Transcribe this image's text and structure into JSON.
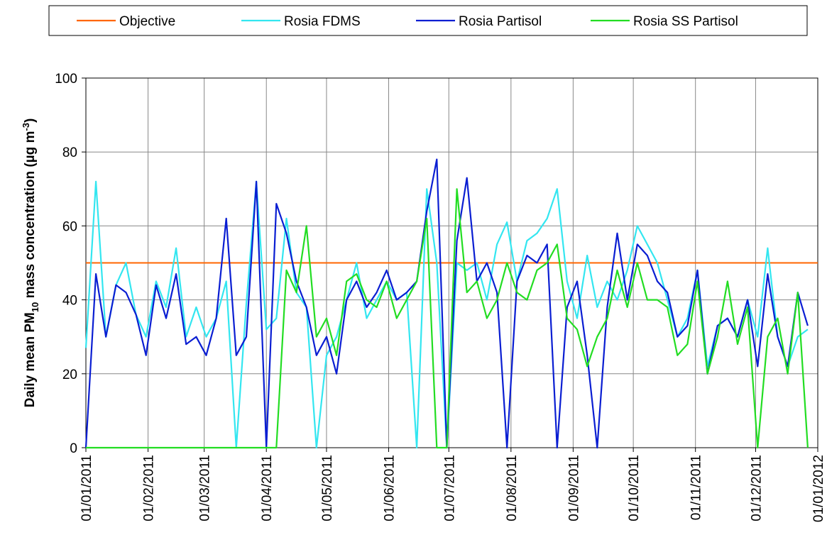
{
  "chart_data": {
    "type": "line",
    "y_label": [
      "Daily mean PM",
      "10",
      " mass concentration (µg m",
      "-3",
      ")"
    ],
    "x": [
      "01/01/2011",
      "06/01/2011",
      "11/01/2011",
      "16/01/2011",
      "21/01/2011",
      "26/01/2011",
      "31/01/2011",
      "05/02/2011",
      "10/02/2011",
      "15/02/2011",
      "20/02/2011",
      "25/02/2011",
      "02/03/2011",
      "07/03/2011",
      "12/03/2011",
      "17/03/2011",
      "22/03/2011",
      "27/03/2011",
      "01/04/2011",
      "06/04/2011",
      "11/04/2011",
      "16/04/2011",
      "21/04/2011",
      "26/04/2011",
      "01/05/2011",
      "06/05/2011",
      "11/05/2011",
      "16/05/2011",
      "21/05/2011",
      "26/05/2011",
      "31/05/2011",
      "05/06/2011",
      "10/06/2011",
      "15/06/2011",
      "20/06/2011",
      "25/06/2011",
      "30/06/2011",
      "05/07/2011",
      "10/07/2011",
      "15/07/2011",
      "20/07/2011",
      "25/07/2011",
      "30/07/2011",
      "04/08/2011",
      "09/08/2011",
      "14/08/2011",
      "19/08/2011",
      "24/08/2011",
      "29/08/2011",
      "03/09/2011",
      "08/09/2011",
      "13/09/2011",
      "18/09/2011",
      "23/09/2011",
      "28/09/2011",
      "03/10/2011",
      "08/10/2011",
      "13/10/2011",
      "18/10/2011",
      "23/10/2011",
      "28/10/2011",
      "02/11/2011",
      "07/11/2011",
      "12/11/2011",
      "17/11/2011",
      "22/11/2011",
      "27/11/2011",
      "02/12/2011",
      "07/12/2011",
      "12/12/2011",
      "17/12/2011",
      "22/12/2011",
      "27/12/2011"
    ],
    "reference_line": {
      "name": "Objective",
      "color": "#ff6600",
      "value": 50
    },
    "series": [
      {
        "name": "Rosia FDMS",
        "color": "#33e6f0",
        "values": [
          27,
          72,
          30,
          44,
          50,
          36,
          30,
          45,
          38,
          54,
          30,
          38,
          30,
          35,
          45,
          0,
          39,
          72,
          32,
          35,
          62,
          42,
          38,
          0,
          25,
          30,
          40,
          50,
          35,
          40,
          45,
          40,
          42,
          0,
          70,
          50,
          0,
          50,
          48,
          50,
          40,
          55,
          61,
          45,
          56,
          58,
          62,
          70,
          45,
          35,
          52,
          38,
          45,
          40,
          48,
          60,
          55,
          50,
          40,
          30,
          35,
          48,
          22,
          33,
          35,
          30,
          40,
          30,
          54,
          30,
          22,
          30,
          32
        ]
      },
      {
        "name": "Rosia Partisol",
        "color": "#0a1ed2",
        "values": [
          0,
          47,
          30,
          44,
          42,
          36,
          25,
          44,
          35,
          47,
          28,
          30,
          25,
          35,
          62,
          25,
          30,
          72,
          0,
          66,
          58,
          45,
          38,
          25,
          30,
          20,
          40,
          45,
          38,
          42,
          48,
          40,
          42,
          45,
          64,
          78,
          0,
          56,
          73,
          45,
          50,
          42,
          0,
          45,
          52,
          50,
          55,
          0,
          38,
          45,
          25,
          0,
          38,
          58,
          40,
          55,
          52,
          45,
          42,
          30,
          33,
          48,
          20,
          33,
          35,
          30,
          40,
          22,
          47,
          30,
          22,
          42,
          33
        ]
      },
      {
        "name": "Rosia SS Partisol",
        "color": "#22dd22",
        "values": [
          0,
          0,
          0,
          0,
          0,
          0,
          0,
          0,
          0,
          0,
          0,
          0,
          0,
          0,
          0,
          0,
          0,
          0,
          0,
          0,
          48,
          42,
          60,
          30,
          35,
          25,
          45,
          47,
          40,
          38,
          45,
          35,
          40,
          45,
          62,
          0,
          0,
          70,
          42,
          45,
          35,
          40,
          50,
          42,
          40,
          48,
          50,
          55,
          35,
          32,
          22,
          30,
          35,
          48,
          38,
          50,
          40,
          40,
          38,
          25,
          28,
          45,
          20,
          30,
          45,
          28,
          38,
          0,
          30,
          35,
          20,
          42,
          0
        ]
      }
    ],
    "xlim": [
      "01/01/2011",
      "01/01/2012"
    ],
    "xticks": [
      "01/01/2011",
      "01/02/2011",
      "01/03/2011",
      "01/04/2011",
      "01/05/2011",
      "01/06/2011",
      "01/07/2011",
      "01/08/2011",
      "01/09/2011",
      "01/10/2011",
      "01/11/2011",
      "01/12/2011",
      "01/01/2012"
    ],
    "ylim": [
      0,
      100
    ],
    "yticks": [
      0,
      20,
      40,
      60,
      80,
      100
    ],
    "grid": true,
    "legend": "top"
  }
}
